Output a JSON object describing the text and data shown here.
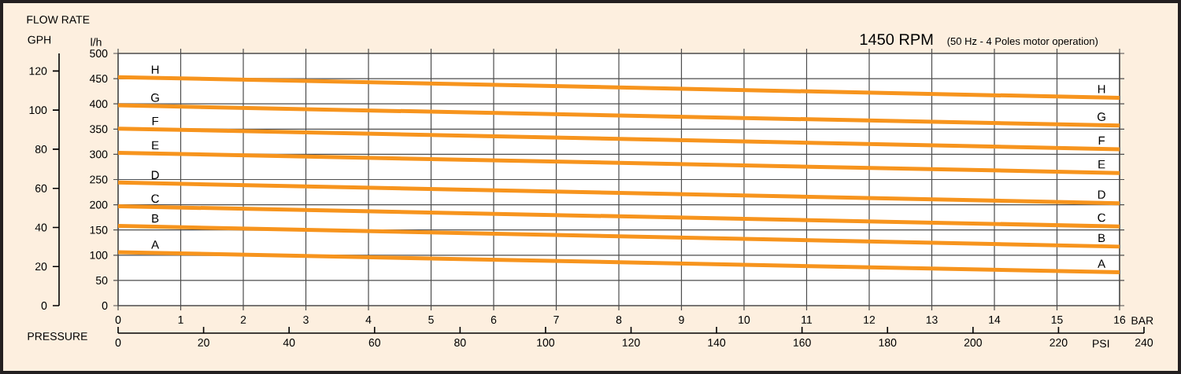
{
  "chart_data": {
    "type": "line",
    "title": "1450 RPM",
    "subtitle": "(50 Hz - 4 Poles motor operation)",
    "xlabel": "BAR",
    "x2label": "PSI",
    "ylabel": "l/h",
    "y2label": "GPH",
    "annotations": [
      "FLOW RATE",
      "PRESSURE"
    ],
    "x": [
      0,
      16
    ],
    "xlim": [
      0,
      16
    ],
    "xticks": [
      0,
      1,
      2,
      3,
      4,
      5,
      6,
      7,
      8,
      9,
      10,
      11,
      12,
      13,
      14,
      15,
      16
    ],
    "x2lim": [
      0,
      240
    ],
    "x2ticks": [
      0,
      20,
      40,
      60,
      80,
      100,
      120,
      140,
      160,
      180,
      200,
      220,
      240
    ],
    "ylim": [
      0,
      500
    ],
    "yticks": [
      0,
      50,
      100,
      150,
      200,
      250,
      300,
      350,
      400,
      450,
      500
    ],
    "y2lim": [
      0,
      129
    ],
    "y2ticks": [
      0,
      20,
      40,
      60,
      80,
      100,
      120
    ],
    "grid": true,
    "line_style": "solid",
    "series": [
      {
        "name": "A",
        "color": "#f7941d",
        "values": [
          106,
          66
        ]
      },
      {
        "name": "B",
        "color": "#f7941d",
        "values": [
          158,
          117
        ]
      },
      {
        "name": "C",
        "color": "#f7941d",
        "values": [
          197,
          157
        ]
      },
      {
        "name": "D",
        "color": "#f7941d",
        "values": [
          244,
          203
        ]
      },
      {
        "name": "E",
        "color": "#f7941d",
        "values": [
          303,
          263
        ]
      },
      {
        "name": "F",
        "color": "#f7941d",
        "values": [
          351,
          310
        ]
      },
      {
        "name": "G",
        "color": "#f7941d",
        "values": [
          397,
          357
        ]
      },
      {
        "name": "H",
        "color": "#f7941d",
        "values": [
          453,
          412
        ]
      }
    ]
  }
}
